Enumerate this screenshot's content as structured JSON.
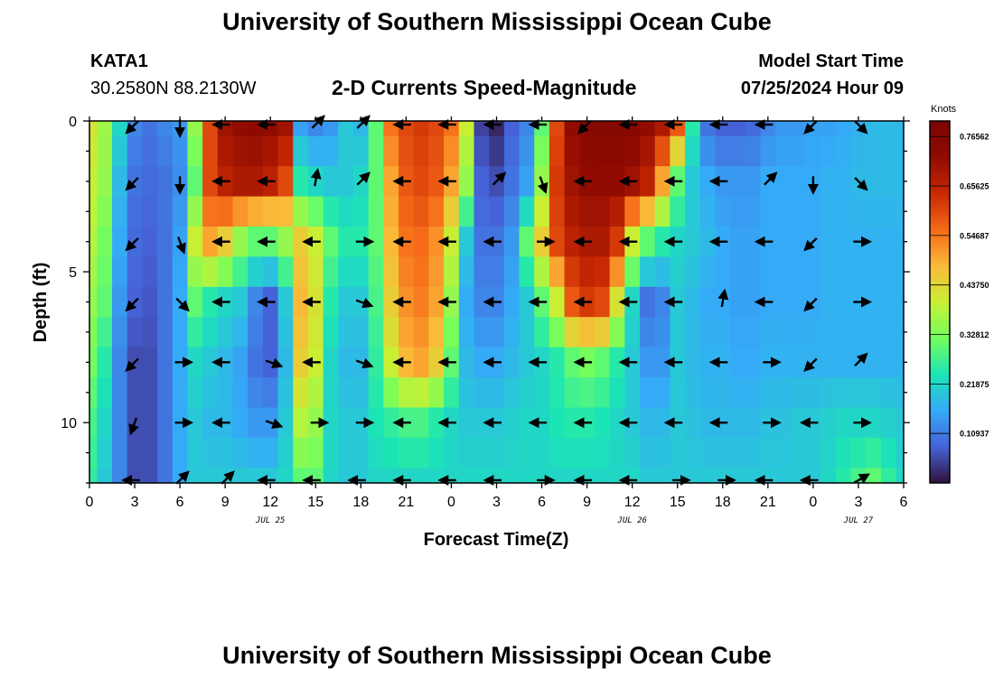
{
  "page": {
    "title": "University of Southern Mississippi Ocean Cube",
    "station_id": "KATA1",
    "station_coords": "30.2580N  88.2130W",
    "chart_title": "2-D Currents Speed-Magnitude",
    "model_label": "Model Start Time",
    "model_time": "07/25/2024 Hour 09",
    "second_title": "University of Southern Mississippi Ocean Cube"
  },
  "chart_data": {
    "type": "heatmap",
    "title": "2-D Currents Speed-Magnitude",
    "xlabel": "Forecast Time(Z)",
    "ylabel": "Depth (ft)",
    "x_hours_range": [
      0,
      54
    ],
    "y_depth_range": [
      0,
      12
    ],
    "y_inverted": true,
    "x_tick_labels": [
      "0",
      "3",
      "6",
      "9",
      "12",
      "15",
      "18",
      "21",
      "0",
      "3",
      "6",
      "9",
      "12",
      "15",
      "18",
      "21",
      "0",
      "3",
      "6"
    ],
    "y_tick_labels": [
      "0",
      "5",
      "10"
    ],
    "y_tick_values": [
      0,
      5,
      10
    ],
    "date_labels": [
      {
        "text": "JUL 25",
        "hour": 12
      },
      {
        "text": "JUL 26",
        "hour": 36
      },
      {
        "text": "JUL 27",
        "hour": 51
      }
    ],
    "colorbar": {
      "label": "Knots",
      "range": [
        0,
        0.8
      ],
      "tick_labels": [
        "0.76562",
        "0.65625",
        "0.54687",
        "0.43750",
        "0.32812",
        "0.21875",
        "0.10937"
      ],
      "tick_values": [
        0.76562,
        0.65625,
        0.54687,
        0.4375,
        0.32812,
        0.21875,
        0.10937
      ]
    },
    "depth_rows_ft": [
      0,
      1,
      2,
      3,
      4,
      5,
      6,
      7,
      8,
      9,
      10,
      11,
      12
    ],
    "time_cols_hours": [
      0,
      1,
      2,
      3,
      4,
      5,
      6,
      7,
      8,
      9,
      10,
      11,
      12,
      13,
      14,
      15,
      16,
      17,
      18,
      19,
      20,
      21,
      22,
      23,
      24,
      25,
      26,
      27,
      28,
      29,
      30,
      31,
      32,
      33,
      34,
      35,
      36,
      37,
      38,
      39,
      40,
      41,
      42,
      43,
      44,
      45,
      46,
      47,
      48,
      49,
      50,
      51,
      52,
      53,
      54
    ],
    "speed_knots_profile": {
      "0": [
        0.42,
        0.36,
        0.22,
        0.12,
        0.1,
        0.12,
        0.14,
        0.35,
        0.6,
        0.7,
        0.72,
        0.73,
        0.72,
        0.7,
        0.15,
        0.12,
        0.14,
        0.2,
        0.18,
        0.3,
        0.55,
        0.6,
        0.62,
        0.6,
        0.55,
        0.4,
        0.05,
        0.02,
        0.08,
        0.12,
        0.3,
        0.6,
        0.72,
        0.75,
        0.76,
        0.76,
        0.75,
        0.72,
        0.68,
        0.58,
        0.25,
        0.1,
        0.08,
        0.08,
        0.09,
        0.12,
        0.14,
        0.14,
        0.15,
        0.15,
        0.16,
        0.17,
        0.18,
        0.18,
        0.18
      ],
      "2": [
        0.4,
        0.35,
        0.18,
        0.1,
        0.09,
        0.1,
        0.13,
        0.3,
        0.6,
        0.66,
        0.68,
        0.68,
        0.66,
        0.6,
        0.25,
        0.22,
        0.2,
        0.2,
        0.22,
        0.3,
        0.5,
        0.58,
        0.6,
        0.58,
        0.5,
        0.35,
        0.08,
        0.06,
        0.1,
        0.15,
        0.35,
        0.62,
        0.7,
        0.72,
        0.72,
        0.72,
        0.7,
        0.66,
        0.5,
        0.3,
        0.2,
        0.16,
        0.14,
        0.14,
        0.14,
        0.16,
        0.16,
        0.16,
        0.16,
        0.17,
        0.17,
        0.18,
        0.18,
        0.18,
        0.18
      ],
      "4": [
        0.38,
        0.32,
        0.16,
        0.09,
        0.08,
        0.1,
        0.15,
        0.4,
        0.5,
        0.45,
        0.35,
        0.3,
        0.3,
        0.35,
        0.45,
        0.4,
        0.3,
        0.25,
        0.25,
        0.3,
        0.48,
        0.55,
        0.56,
        0.52,
        0.4,
        0.2,
        0.1,
        0.1,
        0.14,
        0.3,
        0.45,
        0.6,
        0.66,
        0.68,
        0.68,
        0.62,
        0.4,
        0.3,
        0.25,
        0.22,
        0.2,
        0.18,
        0.16,
        0.15,
        0.15,
        0.16,
        0.16,
        0.16,
        0.16,
        0.17,
        0.17,
        0.17,
        0.17,
        0.17,
        0.17
      ],
      "6": [
        0.35,
        0.3,
        0.14,
        0.08,
        0.07,
        0.1,
        0.16,
        0.3,
        0.25,
        0.22,
        0.2,
        0.12,
        0.08,
        0.2,
        0.48,
        0.42,
        0.25,
        0.2,
        0.2,
        0.28,
        0.45,
        0.52,
        0.54,
        0.5,
        0.35,
        0.16,
        0.12,
        0.12,
        0.16,
        0.2,
        0.3,
        0.4,
        0.58,
        0.62,
        0.6,
        0.42,
        0.22,
        0.1,
        0.12,
        0.2,
        0.18,
        0.16,
        0.16,
        0.15,
        0.15,
        0.16,
        0.16,
        0.16,
        0.16,
        0.17,
        0.17,
        0.17,
        0.17,
        0.17,
        0.17
      ],
      "8": [
        0.32,
        0.25,
        0.12,
        0.06,
        0.06,
        0.1,
        0.16,
        0.22,
        0.2,
        0.18,
        0.15,
        0.1,
        0.08,
        0.18,
        0.45,
        0.4,
        0.22,
        0.18,
        0.18,
        0.26,
        0.4,
        0.48,
        0.5,
        0.45,
        0.3,
        0.18,
        0.16,
        0.16,
        0.18,
        0.2,
        0.22,
        0.25,
        0.3,
        0.32,
        0.3,
        0.25,
        0.2,
        0.14,
        0.14,
        0.2,
        0.18,
        0.17,
        0.17,
        0.16,
        0.16,
        0.17,
        0.17,
        0.17,
        0.17,
        0.17,
        0.17,
        0.17,
        0.17,
        0.17,
        0.17
      ],
      "10": [
        0.28,
        0.22,
        0.12,
        0.06,
        0.06,
        0.1,
        0.16,
        0.2,
        0.18,
        0.18,
        0.16,
        0.14,
        0.14,
        0.2,
        0.38,
        0.35,
        0.22,
        0.2,
        0.2,
        0.24,
        0.26,
        0.28,
        0.28,
        0.25,
        0.22,
        0.2,
        0.2,
        0.2,
        0.21,
        0.22,
        0.22,
        0.24,
        0.25,
        0.25,
        0.24,
        0.22,
        0.2,
        0.18,
        0.18,
        0.2,
        0.19,
        0.18,
        0.18,
        0.18,
        0.18,
        0.19,
        0.19,
        0.2,
        0.2,
        0.21,
        0.22,
        0.22,
        0.22,
        0.21,
        0.2
      ],
      "12": [
        0.26,
        0.2,
        0.12,
        0.06,
        0.06,
        0.1,
        0.16,
        0.2,
        0.2,
        0.2,
        0.2,
        0.2,
        0.2,
        0.22,
        0.3,
        0.3,
        0.22,
        0.2,
        0.2,
        0.22,
        0.22,
        0.22,
        0.22,
        0.22,
        0.22,
        0.22,
        0.22,
        0.22,
        0.22,
        0.22,
        0.22,
        0.22,
        0.22,
        0.22,
        0.22,
        0.22,
        0.22,
        0.2,
        0.2,
        0.2,
        0.2,
        0.2,
        0.2,
        0.2,
        0.2,
        0.2,
        0.2,
        0.2,
        0.2,
        0.22,
        0.25,
        0.28,
        0.3,
        0.26,
        0.22
      ]
    },
    "vector_times_hours": [
      3,
      6,
      9,
      12,
      15,
      18,
      21,
      24,
      27,
      30,
      33,
      36,
      39,
      42,
      45,
      48,
      51
    ],
    "vector_depths_ft": [
      0,
      2,
      4,
      6,
      8,
      10,
      12
    ],
    "vector_directions_deg": [
      [
        225,
        180,
        270,
        270,
        45,
        45,
        270,
        270,
        270,
        270,
        225,
        270,
        270,
        270,
        270,
        225,
        135
      ],
      [
        225,
        180,
        270,
        270,
        10,
        45,
        270,
        270,
        45,
        160,
        270,
        270,
        270,
        270,
        45,
        180,
        135
      ],
      [
        225,
        160,
        270,
        270,
        270,
        90,
        270,
        270,
        270,
        90,
        270,
        270,
        270,
        270,
        270,
        225,
        90
      ],
      [
        225,
        135,
        270,
        270,
        270,
        110,
        270,
        270,
        270,
        270,
        270,
        270,
        270,
        10,
        270,
        225,
        90
      ],
      [
        225,
        90,
        270,
        110,
        270,
        110,
        270,
        270,
        270,
        270,
        270,
        270,
        270,
        270,
        90,
        225,
        45
      ],
      [
        200,
        90,
        270,
        110,
        90,
        90,
        270,
        270,
        270,
        270,
        270,
        270,
        270,
        270,
        90,
        270,
        90
      ],
      [
        270,
        45,
        45,
        270,
        270,
        270,
        270,
        270,
        270,
        90,
        270,
        270,
        90,
        90,
        270,
        270,
        60
      ]
    ]
  }
}
